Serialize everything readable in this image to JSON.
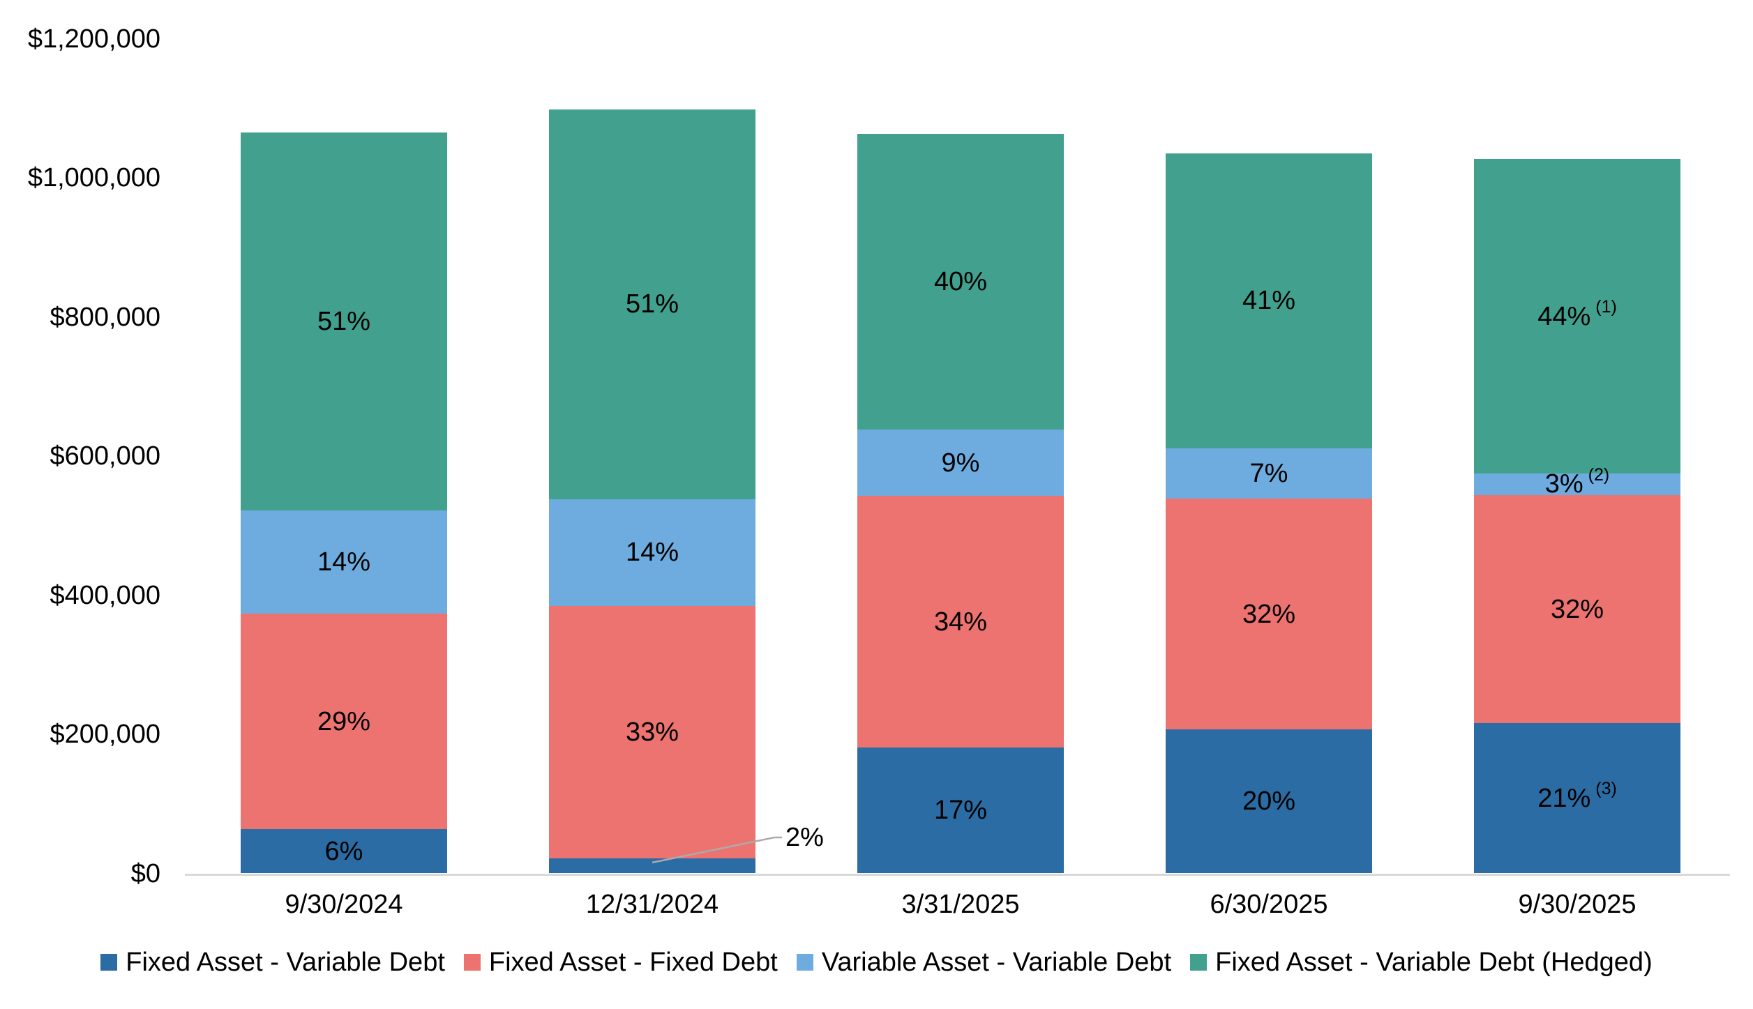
{
  "chart_data": {
    "type": "bar",
    "stacked": true,
    "title": "",
    "xlabel": "",
    "ylabel": "",
    "background": "#ffffff",
    "grid": false,
    "legend_position": "bottom",
    "y_axis": {
      "min": 0,
      "max": 1200000,
      "tick_step": 200000,
      "tick_labels_top_to_bottom": [
        "$1,200,000",
        "$1,000,000",
        "$800,000",
        "$600,000",
        "$400,000",
        "$200,000",
        "$0"
      ]
    },
    "categories": [
      "9/30/2024",
      "12/31/2024",
      "3/31/2025",
      "6/30/2025",
      "9/30/2025"
    ],
    "series": [
      {
        "name": "Fixed Asset - Variable Debt",
        "color": "#2B6CA4",
        "percents": [
          6,
          2,
          17,
          20,
          21
        ]
      },
      {
        "name": "Fixed Asset - Fixed Debt",
        "color": "#ED7370",
        "percents": [
          29,
          33,
          34,
          32,
          32
        ]
      },
      {
        "name": "Variable Asset - Variable Debt",
        "color": "#6EACDF",
        "percents": [
          14,
          14,
          9,
          7,
          3
        ]
      },
      {
        "name": "Fixed Asset - Variable Debt (Hedged)",
        "color": "#41A08E",
        "percents": [
          51,
          51,
          40,
          41,
          44
        ]
      }
    ],
    "bar_totals_usd_estimated": [
      1066000,
      1099000,
      1064000,
      1036000,
      1027000
    ],
    "bars": [
      {
        "category": "9/30/2024",
        "total_usd": 1066000,
        "segments": [
          {
            "series": "Fixed Asset - Variable Debt",
            "percent": 6,
            "label": "6%"
          },
          {
            "series": "Fixed Asset - Fixed Debt",
            "percent": 29,
            "label": "29%"
          },
          {
            "series": "Variable Asset - Variable Debt",
            "percent": 14,
            "label": "14%"
          },
          {
            "series": "Fixed Asset - Variable Debt (Hedged)",
            "percent": 51,
            "label": "51%"
          }
        ]
      },
      {
        "category": "12/31/2024",
        "total_usd": 1099000,
        "segments": [
          {
            "series": "Fixed Asset - Variable Debt",
            "percent": 2,
            "label": "2%",
            "callout": true
          },
          {
            "series": "Fixed Asset - Fixed Debt",
            "percent": 33,
            "label": "33%"
          },
          {
            "series": "Variable Asset - Variable Debt",
            "percent": 14,
            "label": "14%"
          },
          {
            "series": "Fixed Asset - Variable Debt (Hedged)",
            "percent": 51,
            "label": "51%"
          }
        ]
      },
      {
        "category": "3/31/2025",
        "total_usd": 1064000,
        "segments": [
          {
            "series": "Fixed Asset - Variable Debt",
            "percent": 17,
            "label": "17%"
          },
          {
            "series": "Fixed Asset - Fixed Debt",
            "percent": 34,
            "label": "34%"
          },
          {
            "series": "Variable Asset - Variable Debt",
            "percent": 9,
            "label": "9%"
          },
          {
            "series": "Fixed Asset - Variable Debt (Hedged)",
            "percent": 40,
            "label": "40%"
          }
        ]
      },
      {
        "category": "6/30/2025",
        "total_usd": 1036000,
        "segments": [
          {
            "series": "Fixed Asset - Variable Debt",
            "percent": 20,
            "label": "20%"
          },
          {
            "series": "Fixed Asset - Fixed Debt",
            "percent": 32,
            "label": "32%"
          },
          {
            "series": "Variable Asset - Variable Debt",
            "percent": 7,
            "label": "7%"
          },
          {
            "series": "Fixed Asset - Variable Debt (Hedged)",
            "percent": 41,
            "label": "41%"
          }
        ]
      },
      {
        "category": "9/30/2025",
        "total_usd": 1027000,
        "segments": [
          {
            "series": "Fixed Asset - Variable Debt",
            "percent": 21,
            "label": "21%",
            "footnote": "(3)"
          },
          {
            "series": "Fixed Asset - Fixed Debt",
            "percent": 32,
            "label": "32%"
          },
          {
            "series": "Variable Asset - Variable Debt",
            "percent": 3,
            "label": "3%",
            "footnote": "(2)"
          },
          {
            "series": "Fixed Asset - Variable Debt (Hedged)",
            "percent": 44,
            "label": "44%",
            "footnote": "(1)"
          }
        ]
      }
    ],
    "callout": {
      "label": "2%",
      "category": "12/31/2024",
      "series": "Fixed Asset - Variable Debt"
    }
  },
  "legend": {
    "items": [
      {
        "label": "Fixed Asset - Variable Debt",
        "color": "#2B6CA4"
      },
      {
        "label": "Fixed Asset - Fixed Debt",
        "color": "#ED7370"
      },
      {
        "label": "Variable Asset - Variable Debt",
        "color": "#6EACDF"
      },
      {
        "label": "Fixed Asset - Variable Debt (Hedged)",
        "color": "#41A08E"
      }
    ]
  },
  "colors": {
    "axis_line": "#d9d9d9",
    "leader_line": "#ababab",
    "label_text": "#000000"
  }
}
